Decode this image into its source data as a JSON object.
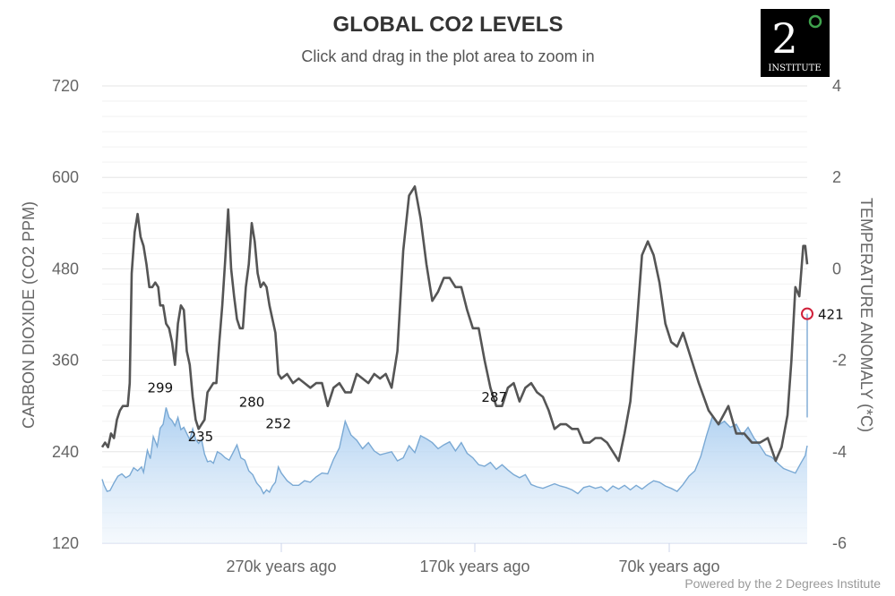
{
  "header": {
    "title": "GLOBAL CO2 LEVELS",
    "subtitle": "Click and drag in the plot area to zoom in"
  },
  "logo": {
    "numeral": "2",
    "word": "INSTITUTE",
    "ring_color": "#3fa34d"
  },
  "credit": "Powered by the 2 Degrees Institute",
  "chart_data": {
    "type": "area",
    "x_unit": "thousand years ago",
    "x_range": [
      -452,
      -2,
      0
    ],
    "x_ticks": [
      {
        "x": -270,
        "label": "270k years ago"
      },
      {
        "x": -170,
        "label": "170k years ago"
      },
      {
        "x": -70,
        "label": "70k years ago"
      }
    ],
    "y_left": {
      "label": "CARBON DIOXIDE (CO2 PPM)",
      "range": [
        120,
        720
      ],
      "ticks": [
        "120",
        "240",
        "360",
        "480",
        "600",
        "720"
      ]
    },
    "y_right": {
      "label": "TEMPERATURE ANOMALY (*C)",
      "range": [
        -6,
        4
      ],
      "ticks": [
        "-6",
        "-4",
        "-2",
        "0",
        "2",
        "4"
      ]
    },
    "grid": true,
    "series": [
      {
        "axis": "left",
        "kind": "area",
        "color": "#7aa9d4",
        "points": [
          [
            -452,
            204
          ],
          [
            -450,
            196
          ],
          [
            -447,
            188
          ],
          [
            -444,
            189
          ],
          [
            -440,
            199
          ],
          [
            -436,
            208
          ],
          [
            -432,
            211
          ],
          [
            -428,
            206
          ],
          [
            -424,
            209
          ],
          [
            -420,
            219
          ],
          [
            -416,
            215
          ],
          [
            -412,
            220
          ],
          [
            -410,
            213
          ],
          [
            -406,
            242
          ],
          [
            -403,
            231
          ],
          [
            -400,
            260
          ],
          [
            -396,
            247
          ],
          [
            -393,
            271
          ],
          [
            -390,
            276
          ],
          [
            -387,
            298
          ],
          [
            -384,
            285
          ],
          [
            -381,
            281
          ],
          [
            -378,
            274
          ],
          [
            -375,
            285
          ],
          [
            -372,
            269
          ],
          [
            -369,
            272
          ],
          [
            -366,
            264
          ],
          [
            -363,
            256
          ],
          [
            -360,
            270
          ],
          [
            -357,
            256
          ],
          [
            -354,
            251
          ],
          [
            -351,
            256
          ],
          [
            -348,
            237
          ],
          [
            -345,
            227
          ],
          [
            -342,
            228
          ],
          [
            -339,
            225
          ],
          [
            -335,
            240
          ],
          [
            -331,
            237
          ],
          [
            -327,
            232
          ],
          [
            -323,
            229
          ],
          [
            -319,
            239
          ],
          [
            -315,
            249
          ],
          [
            -311,
            232
          ],
          [
            -307,
            229
          ],
          [
            -303,
            215
          ],
          [
            -299,
            210
          ],
          [
            -295,
            199
          ],
          [
            -291,
            193
          ],
          [
            -288,
            185
          ],
          [
            -285,
            190
          ],
          [
            -282,
            187
          ],
          [
            -279,
            195
          ],
          [
            -276,
            200
          ],
          [
            -273,
            220
          ],
          [
            -270,
            212
          ],
          [
            -267,
            202
          ],
          [
            -264,
            196
          ],
          [
            -261,
            196
          ],
          [
            -258,
            202
          ],
          [
            -255,
            200
          ],
          [
            -252,
            207
          ],
          [
            -249,
            212
          ],
          [
            -246,
            211
          ],
          [
            -243,
            230
          ],
          [
            -240,
            245
          ],
          [
            -237,
            280
          ],
          [
            -234,
            262
          ],
          [
            -231,
            255
          ],
          [
            -228,
            244
          ],
          [
            -225,
            252
          ],
          [
            -222,
            241
          ],
          [
            -219,
            236
          ],
          [
            -216,
            238
          ],
          [
            -213,
            240
          ],
          [
            -210,
            228
          ],
          [
            -207,
            232
          ],
          [
            -204,
            248
          ],
          [
            -201,
            239
          ],
          [
            -198,
            261
          ],
          [
            -195,
            257
          ],
          [
            -192,
            252
          ],
          [
            -189,
            244
          ],
          [
            -186,
            249
          ],
          [
            -183,
            253
          ],
          [
            -180,
            241
          ],
          [
            -177,
            252
          ],
          [
            -174,
            238
          ],
          [
            -171,
            232
          ],
          [
            -168,
            223
          ],
          [
            -165,
            221
          ],
          [
            -162,
            226
          ],
          [
            -159,
            217
          ],
          [
            -156,
            223
          ],
          [
            -153,
            216
          ],
          [
            -150,
            210
          ],
          [
            -147,
            206
          ],
          [
            -144,
            210
          ],
          [
            -141,
            197
          ],
          [
            -138,
            194
          ],
          [
            -135,
            192
          ],
          [
            -132,
            195
          ],
          [
            -129,
            198
          ],
          [
            -126,
            195
          ],
          [
            -123,
            193
          ],
          [
            -120,
            190
          ],
          [
            -117,
            185
          ],
          [
            -114,
            193
          ],
          [
            -111,
            195
          ],
          [
            -108,
            192
          ],
          [
            -105,
            194
          ],
          [
            -102,
            188
          ],
          [
            -99,
            195
          ],
          [
            -96,
            191
          ],
          [
            -93,
            196
          ],
          [
            -90,
            190
          ],
          [
            -87,
            196
          ],
          [
            -84,
            191
          ],
          [
            -81,
            197
          ],
          [
            -78,
            202
          ],
          [
            -75,
            200
          ],
          [
            -72,
            195
          ],
          [
            -69,
            192
          ],
          [
            -66,
            188
          ],
          [
            -63,
            197
          ],
          [
            -60,
            208
          ],
          [
            -57,
            215
          ],
          [
            -54,
            234
          ],
          [
            -51,
            262
          ],
          [
            -48,
            287
          ],
          [
            -45,
            275
          ],
          [
            -42,
            280
          ],
          [
            -39,
            272
          ],
          [
            -36,
            276
          ],
          [
            -33,
            262
          ],
          [
            -30,
            272
          ],
          [
            -27,
            258
          ],
          [
            -24,
            248
          ],
          [
            -21,
            236
          ],
          [
            -18,
            233
          ],
          [
            -15,
            225
          ],
          [
            -12,
            218
          ],
          [
            -9,
            215
          ],
          [
            -6,
            212
          ],
          [
            -3,
            226
          ],
          [
            -1,
            235
          ],
          [
            0,
            248
          ]
        ],
        "_comment_note": "per-point x offsets for second half are mapped on a compressed recent segment in the script"
      }
    ]
  },
  "annotations": [
    {
      "label": "299",
      "x": -393,
      "y": 299
    },
    {
      "label": "235",
      "x": -352,
      "y": 235
    },
    {
      "label": "280",
      "x": -300,
      "y": 280
    },
    {
      "label": "252",
      "x": -273,
      "y": 252
    },
    {
      "label": "287",
      "x": -160,
      "y": 287
    }
  ],
  "current_value": {
    "label": "421",
    "y": 421
  }
}
